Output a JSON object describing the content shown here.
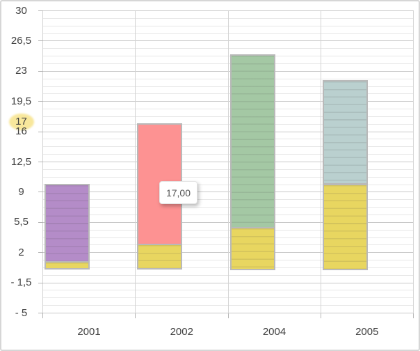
{
  "chart_data": {
    "type": "bar",
    "subtype": "stacked-columns",
    "title": "",
    "categories": [
      "2001",
      "2002",
      "2004",
      "2005"
    ],
    "bars": [
      {
        "category": "2001",
        "segments": [
          {
            "value": 1,
            "color": "yellow"
          },
          {
            "value": 9,
            "color": "purple"
          }
        ],
        "total": 10
      },
      {
        "category": "2002",
        "segments": [
          {
            "value": 3,
            "color": "yellow"
          },
          {
            "value": 14,
            "color": "red"
          }
        ],
        "total": 17
      },
      {
        "category": "2004",
        "segments": [
          {
            "value": 5,
            "color": "yellow"
          },
          {
            "value": 20,
            "color": "green"
          }
        ],
        "total": 25
      },
      {
        "category": "2005",
        "segments": [
          {
            "value": 10,
            "color": "yellow"
          },
          {
            "value": 12,
            "color": "bluegray"
          }
        ],
        "total": 22
      }
    ],
    "palette": {
      "yellow": "#e8d660",
      "purple": "#b48cc8",
      "red": "#fd9292",
      "green": "#a4c8a4",
      "bluegray": "#bad0cf",
      "bar_border": "#b9b9b9"
    },
    "y_axis": {
      "min": -5,
      "max": 30,
      "major_step": 3.5,
      "minor_step": 0.875,
      "tick_labels": [
        "30",
        "26,5",
        "23",
        "19,5",
        "16",
        "12,5",
        "9",
        "5,5",
        "2",
        "- 1,5",
        "- 5"
      ],
      "number_format": "decimal-comma"
    },
    "x_axis": {
      "tick_labels": [
        "2001",
        "2002",
        "2004",
        "2005"
      ]
    },
    "legend": "none",
    "gridlines": {
      "horizontal_major": true,
      "horizontal_minor": true,
      "vertical": true
    },
    "annotations": {
      "highlighted_axis_value": {
        "label": "17",
        "value": 17,
        "highlight_color": "#f8e79c"
      },
      "data_label_tooltip": {
        "text": "17,00",
        "value": 17,
        "category": "2002"
      }
    }
  }
}
